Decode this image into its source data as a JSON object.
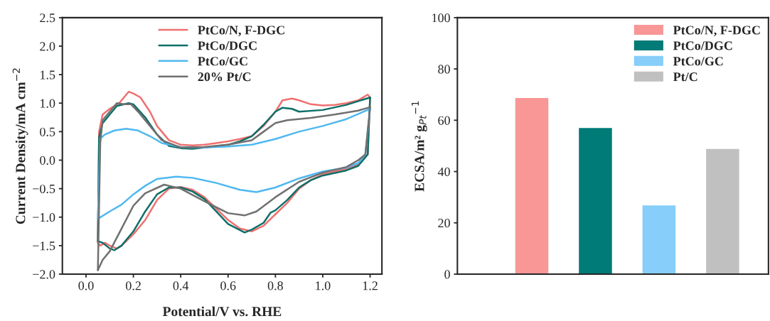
{
  "chart_data": [
    {
      "type": "line",
      "xlabel": "Potential/V vs. RHE",
      "ylabel": "Current Density/mA cm$^{−2}$",
      "xlim": [
        -0.1,
        1.25
      ],
      "xticks": [
        {
          "value": 0.0,
          "label": "0.0"
        },
        {
          "value": 0.2,
          "label": "0.2"
        },
        {
          "value": 0.4,
          "label": "0.4"
        },
        {
          "value": 0.6,
          "label": "0.6"
        },
        {
          "value": 0.8,
          "label": "0.8"
        },
        {
          "value": 1.0,
          "label": "1.0"
        },
        {
          "value": 1.2,
          "label": "1.2"
        }
      ],
      "ylim": [
        -2.0,
        2.5
      ],
      "yticks": [
        {
          "value": -2.0,
          "label": "−2.0"
        },
        {
          "value": -1.5,
          "label": "−1.5"
        },
        {
          "value": -1.0,
          "label": "−1.0"
        },
        {
          "value": -0.5,
          "label": "−0.5"
        },
        {
          "value": 0.0,
          "label": "0.0"
        },
        {
          "value": 0.5,
          "label": "0.5"
        },
        {
          "value": 1.0,
          "label": "1.0"
        },
        {
          "value": 1.5,
          "label": "1.5"
        },
        {
          "value": 2.0,
          "label": "2.0"
        },
        {
          "value": 2.5,
          "label": "2.5"
        }
      ],
      "legend": "top",
      "series": [
        {
          "name": "PtCo/N, F-DGC",
          "color": "#f07070",
          "x": [
            0.05,
            0.055,
            0.07,
            0.1,
            0.14,
            0.18,
            0.2,
            0.23,
            0.27,
            0.3,
            0.35,
            0.4,
            0.45,
            0.5,
            0.55,
            0.6,
            0.65,
            0.7,
            0.75,
            0.8,
            0.83,
            0.87,
            0.9,
            0.95,
            1.0,
            1.05,
            1.1,
            1.15,
            1.19,
            1.2
          ],
          "values": [
            -1.45,
            0.5,
            0.8,
            0.9,
            1.0,
            1.2,
            1.17,
            1.1,
            0.85,
            0.6,
            0.35,
            0.27,
            0.26,
            0.27,
            0.3,
            0.33,
            0.37,
            0.42,
            0.6,
            0.85,
            1.05,
            1.08,
            1.05,
            0.98,
            0.96,
            0.97,
            1.0,
            1.05,
            1.15,
            1.1
          ]
        },
        {
          "color": "#f07070",
          "x": [
            1.2,
            1.19,
            1.15,
            1.1,
            1.0,
            0.95,
            0.9,
            0.85,
            0.8,
            0.75,
            0.7,
            0.65,
            0.6,
            0.55,
            0.5,
            0.45,
            0.4,
            0.35,
            0.3,
            0.25,
            0.2,
            0.15,
            0.13,
            0.1,
            0.08,
            0.06,
            0.05
          ],
          "values": [
            1.1,
            0.1,
            -0.08,
            -0.15,
            -0.25,
            -0.35,
            -0.5,
            -0.75,
            -0.95,
            -1.15,
            -1.25,
            -1.2,
            -1.05,
            -0.85,
            -0.65,
            -0.52,
            -0.47,
            -0.5,
            -0.7,
            -1.05,
            -1.3,
            -1.5,
            -1.55,
            -1.5,
            -1.45,
            -1.5,
            -1.45
          ]
        },
        {
          "name": "PtCo/DGC",
          "color": "#0e6f68",
          "x": [
            0.05,
            0.055,
            0.07,
            0.1,
            0.13,
            0.18,
            0.2,
            0.25,
            0.3,
            0.35,
            0.4,
            0.45,
            0.5,
            0.6,
            0.65,
            0.7,
            0.75,
            0.8,
            0.83,
            0.87,
            0.9,
            1.0,
            1.1,
            1.2
          ],
          "values": [
            -1.42,
            0.4,
            0.65,
            0.8,
            0.95,
            1.0,
            0.98,
            0.75,
            0.45,
            0.25,
            0.21,
            0.2,
            0.22,
            0.27,
            0.33,
            0.42,
            0.62,
            0.85,
            0.92,
            0.9,
            0.85,
            0.88,
            0.97,
            1.1
          ]
        },
        {
          "color": "#0e6f68",
          "x": [
            1.2,
            1.19,
            1.15,
            1.1,
            1.0,
            0.95,
            0.9,
            0.85,
            0.8,
            0.78,
            0.75,
            0.7,
            0.67,
            0.6,
            0.55,
            0.5,
            0.45,
            0.4,
            0.35,
            0.3,
            0.25,
            0.2,
            0.15,
            0.12,
            0.1,
            0.07,
            0.05
          ],
          "values": [
            1.1,
            0.1,
            -0.1,
            -0.18,
            -0.27,
            -0.35,
            -0.48,
            -0.7,
            -0.88,
            -0.92,
            -1.1,
            -1.22,
            -1.27,
            -1.12,
            -0.9,
            -0.68,
            -0.55,
            -0.48,
            -0.48,
            -0.6,
            -0.9,
            -1.25,
            -1.5,
            -1.58,
            -1.55,
            -1.45,
            -1.42
          ]
        },
        {
          "name": "PtCo/GC",
          "color": "#4fb8f0",
          "x": [
            0.05,
            0.06,
            0.08,
            0.12,
            0.17,
            0.22,
            0.27,
            0.32,
            0.4,
            0.5,
            0.6,
            0.7,
            0.8,
            0.9,
            1.0,
            1.1,
            1.2
          ],
          "values": [
            -1.03,
            0.38,
            0.45,
            0.52,
            0.55,
            0.52,
            0.42,
            0.3,
            0.23,
            0.22,
            0.24,
            0.27,
            0.37,
            0.5,
            0.6,
            0.72,
            0.9
          ]
        },
        {
          "color": "#4fb8f0",
          "x": [
            1.2,
            1.18,
            1.15,
            1.1,
            1.0,
            0.9,
            0.8,
            0.72,
            0.65,
            0.55,
            0.45,
            0.38,
            0.3,
            0.25,
            0.2,
            0.15,
            0.1,
            0.05
          ],
          "values": [
            0.9,
            0.1,
            -0.05,
            -0.13,
            -0.2,
            -0.32,
            -0.48,
            -0.56,
            -0.52,
            -0.4,
            -0.31,
            -0.29,
            -0.33,
            -0.45,
            -0.6,
            -0.78,
            -0.9,
            -1.03
          ]
        },
        {
          "name": "20% Pt/C",
          "color": "#707070",
          "x": [
            0.05,
            0.06,
            0.07,
            0.1,
            0.13,
            0.16,
            0.19,
            0.22,
            0.27,
            0.32,
            0.4,
            0.5,
            0.6,
            0.7,
            0.75,
            0.8,
            0.85,
            0.95,
            1.05,
            1.15,
            1.2
          ],
          "values": [
            -1.93,
            0.3,
            0.7,
            0.85,
            1.0,
            0.98,
            0.98,
            0.85,
            0.6,
            0.35,
            0.22,
            0.23,
            0.27,
            0.35,
            0.5,
            0.65,
            0.7,
            0.74,
            0.8,
            0.87,
            0.93
          ]
        },
        {
          "color": "#707070",
          "x": [
            1.2,
            1.18,
            1.15,
            1.1,
            1.0,
            0.9,
            0.8,
            0.72,
            0.67,
            0.6,
            0.5,
            0.4,
            0.33,
            0.25,
            0.2,
            0.15,
            0.1,
            0.07,
            0.05
          ],
          "values": [
            0.93,
            0.1,
            0.0,
            -0.12,
            -0.22,
            -0.38,
            -0.65,
            -0.9,
            -0.97,
            -0.93,
            -0.72,
            -0.5,
            -0.43,
            -0.58,
            -0.8,
            -1.2,
            -1.6,
            -1.75,
            -1.93
          ]
        }
      ]
    },
    {
      "type": "bar",
      "ylabel": "ECSA/m² g$_{Pt}$$^{−1}$",
      "categories": [
        null,
        null,
        null,
        null
      ],
      "ylim": [
        0,
        100
      ],
      "yticks": [
        0,
        20,
        40,
        60,
        80,
        100
      ],
      "legend": "top right",
      "tick_labels": "y",
      "stacked": true,
      "series": [
        {
          "name": "PtCo/N, F-DGC",
          "color": "#f99696",
          "values": [
            68.7,
            null,
            null,
            null
          ]
        },
        {
          "name": "PtCo/DGC",
          "color": "#007b78",
          "values": [
            null,
            57,
            null,
            null
          ]
        },
        {
          "name": "PtCo/GC",
          "color": "#87cefa",
          "values": [
            null,
            null,
            26.8,
            null
          ]
        },
        {
          "name": "Pt/C",
          "color": "#c0c0c0",
          "values": [
            null,
            null,
            null,
            48.8
          ]
        }
      ]
    }
  ]
}
